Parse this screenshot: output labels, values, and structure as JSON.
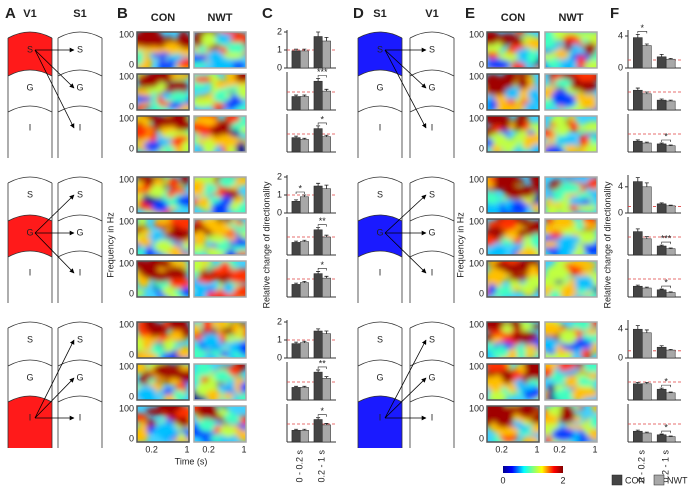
{
  "panels": [
    "A",
    "B",
    "C",
    "D",
    "E",
    "F"
  ],
  "diagrams": [
    {
      "columns": [
        "V1",
        "S1"
      ],
      "layers": [
        "S",
        "G",
        "I"
      ],
      "color": "#ff1a1a"
    },
    {
      "columns": [
        "S1",
        "V1"
      ],
      "layers": [
        "S",
        "G",
        "I"
      ],
      "color": "#1a1aff"
    }
  ],
  "heatmaps": {
    "conditions": [
      "CON",
      "NWT"
    ],
    "ylabel": "Frequency in Hz",
    "yticks": [
      0,
      100
    ],
    "xlabel": "Time (s)",
    "xticks": [
      0.2,
      1
    ],
    "colorbar": [
      0,
      2
    ]
  },
  "bar_axes": {
    "ylabel": "Relative change of directionality",
    "categories": [
      "0 - 0.2 s",
      "0.2 - 1 s"
    ],
    "reference": 1,
    "reference_color": "#e04040"
  },
  "legend": [
    {
      "name": "CON",
      "color": "#444444"
    },
    {
      "name": "NWT",
      "color": "#a8a8a8"
    }
  ],
  "chart_data": [
    {
      "type": "bar",
      "ylim": [
        0,
        2
      ],
      "yticks": [
        0,
        1,
        2
      ],
      "con": [
        0.95,
        1.75
      ],
      "nwt": [
        0.95,
        1.5
      ],
      "con_err": [
        0.1,
        0.25
      ],
      "nwt_err": [
        0.1,
        0.2
      ],
      "stars": [
        null,
        null
      ]
    },
    {
      "type": "bar",
      "ylim": [
        0,
        2
      ],
      "yticks": [],
      "con": [
        0.75,
        1.6
      ],
      "nwt": [
        0.75,
        1.05
      ],
      "con_err": [
        0.08,
        0.15
      ],
      "nwt_err": [
        0.08,
        0.1
      ],
      "stars": [
        null,
        "***"
      ]
    },
    {
      "type": "bar",
      "ylim": [
        0,
        2
      ],
      "yticks": [],
      "con": [
        0.8,
        1.3
      ],
      "nwt": [
        0.7,
        0.85
      ],
      "con_err": [
        0.08,
        0.15
      ],
      "nwt_err": [
        0.06,
        0.08
      ],
      "stars": [
        null,
        "*"
      ]
    },
    {
      "type": "bar",
      "ylim": [
        0,
        2
      ],
      "yticks": [
        0,
        1,
        2
      ],
      "con": [
        0.65,
        1.5
      ],
      "nwt": [
        0.9,
        1.35
      ],
      "con_err": [
        0.08,
        0.15
      ],
      "nwt_err": [
        0.1,
        0.2
      ],
      "stars": [
        "*",
        null
      ]
    },
    {
      "type": "bar",
      "ylim": [
        0,
        2
      ],
      "yticks": [],
      "con": [
        0.7,
        1.4
      ],
      "nwt": [
        0.75,
        1.0
      ],
      "con_err": [
        0.07,
        0.12
      ],
      "nwt_err": [
        0.07,
        0.1
      ],
      "stars": [
        null,
        "**"
      ]
    },
    {
      "type": "bar",
      "ylim": [
        0,
        2
      ],
      "yticks": [],
      "con": [
        0.7,
        1.3
      ],
      "nwt": [
        0.8,
        1.05
      ],
      "con_err": [
        0.07,
        0.12
      ],
      "nwt_err": [
        0.07,
        0.1
      ],
      "stars": [
        null,
        "*"
      ]
    },
    {
      "type": "bar",
      "ylim": [
        0,
        2
      ],
      "yticks": [
        0,
        1,
        2
      ],
      "con": [
        0.8,
        1.5
      ],
      "nwt": [
        0.85,
        1.35
      ],
      "con_err": [
        0.08,
        0.12
      ],
      "nwt_err": [
        0.08,
        0.15
      ],
      "stars": [
        null,
        null
      ]
    },
    {
      "type": "bar",
      "ylim": [
        0,
        2
      ],
      "yticks": [],
      "con": [
        0.7,
        1.55
      ],
      "nwt": [
        0.7,
        1.2
      ],
      "con_err": [
        0.06,
        0.12
      ],
      "nwt_err": [
        0.06,
        0.1
      ],
      "stars": [
        null,
        "**"
      ]
    },
    {
      "type": "bar",
      "ylim": [
        0,
        2
      ],
      "yticks": [],
      "con": [
        0.65,
        1.25
      ],
      "nwt": [
        0.65,
        0.95
      ],
      "con_err": [
        0.06,
        0.1
      ],
      "nwt_err": [
        0.06,
        0.08
      ],
      "stars": [
        null,
        "*"
      ]
    },
    {
      "type": "bar",
      "ylim": [
        0,
        4.5
      ],
      "yticks": [
        0,
        4
      ],
      "con": [
        3.8,
        1.4
      ],
      "nwt": [
        2.8,
        1.1
      ],
      "con_err": [
        0.4,
        0.3
      ],
      "nwt_err": [
        0.2,
        0.1
      ],
      "stars": [
        "*",
        null
      ]
    },
    {
      "type": "bar",
      "ylim": [
        0,
        2
      ],
      "yticks": [],
      "con": [
        1.1,
        0.55
      ],
      "nwt": [
        0.9,
        0.5
      ],
      "con_err": [
        0.12,
        0.06
      ],
      "nwt_err": [
        0.1,
        0.05
      ],
      "stars": [
        null,
        null
      ]
    },
    {
      "type": "bar",
      "ylim": [
        0,
        2
      ],
      "yticks": [],
      "con": [
        0.6,
        0.45
      ],
      "nwt": [
        0.5,
        0.35
      ],
      "con_err": [
        0.07,
        0.05
      ],
      "nwt_err": [
        0.05,
        0.04
      ],
      "stars": [
        null,
        "*"
      ]
    },
    {
      "type": "bar",
      "ylim": [
        0,
        5.5
      ],
      "yticks": [
        0,
        4
      ],
      "con": [
        4.8,
        1.4
      ],
      "nwt": [
        4.0,
        1.1
      ],
      "con_err": [
        0.6,
        0.15
      ],
      "nwt_err": [
        0.6,
        0.1
      ],
      "stars": [
        null,
        null
      ]
    },
    {
      "type": "bar",
      "ylim": [
        0,
        2
      ],
      "yticks": [],
      "con": [
        1.3,
        0.5
      ],
      "nwt": [
        0.9,
        0.35
      ],
      "con_err": [
        0.15,
        0.05
      ],
      "nwt_err": [
        0.12,
        0.04
      ],
      "stars": [
        null,
        "***"
      ]
    },
    {
      "type": "bar",
      "ylim": [
        0,
        2
      ],
      "yticks": [],
      "con": [
        0.6,
        0.4
      ],
      "nwt": [
        0.5,
        0.25
      ],
      "con_err": [
        0.06,
        0.04
      ],
      "nwt_err": [
        0.05,
        0.03
      ],
      "stars": [
        null,
        "*"
      ]
    },
    {
      "type": "bar",
      "ylim": [
        0,
        5
      ],
      "yticks": [
        0,
        4
      ],
      "con": [
        4.0,
        1.5
      ],
      "nwt": [
        3.5,
        1.1
      ],
      "con_err": [
        0.5,
        0.2
      ],
      "nwt_err": [
        0.4,
        0.1
      ],
      "stars": [
        null,
        null
      ]
    },
    {
      "type": "bar",
      "ylim": [
        0,
        2
      ],
      "yticks": [],
      "con": [
        0.9,
        0.6
      ],
      "nwt": [
        0.9,
        0.4
      ],
      "con_err": [
        0.08,
        0.06
      ],
      "nwt_err": [
        0.08,
        0.04
      ],
      "stars": [
        null,
        "*"
      ]
    },
    {
      "type": "bar",
      "ylim": [
        0,
        2
      ],
      "yticks": [],
      "con": [
        0.6,
        0.4
      ],
      "nwt": [
        0.5,
        0.3
      ],
      "con_err": [
        0.06,
        0.04
      ],
      "nwt_err": [
        0.05,
        0.03
      ],
      "stars": [
        null,
        "*"
      ]
    }
  ]
}
